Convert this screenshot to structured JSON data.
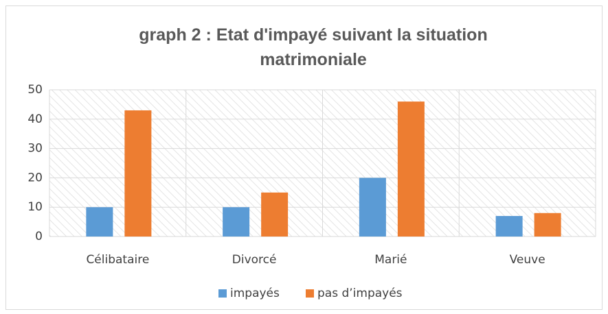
{
  "chart_data": {
    "type": "bar",
    "title": "graph 2 : Etat d'impayé suivant la situation matrimoniale",
    "categories": [
      "Célibataire",
      "Divorcé",
      "Marié",
      "Veuve"
    ],
    "series": [
      {
        "name": "impayés",
        "color": "#5b9bd5",
        "values": [
          10,
          10,
          20,
          7
        ]
      },
      {
        "name": "pas d’impayés",
        "color": "#ed7d31",
        "values": [
          43,
          15,
          46,
          8
        ]
      }
    ],
    "ylim": [
      0,
      50
    ],
    "yticks": [
      0,
      10,
      20,
      30,
      40,
      50
    ],
    "grid": true,
    "legend": "bottom"
  }
}
